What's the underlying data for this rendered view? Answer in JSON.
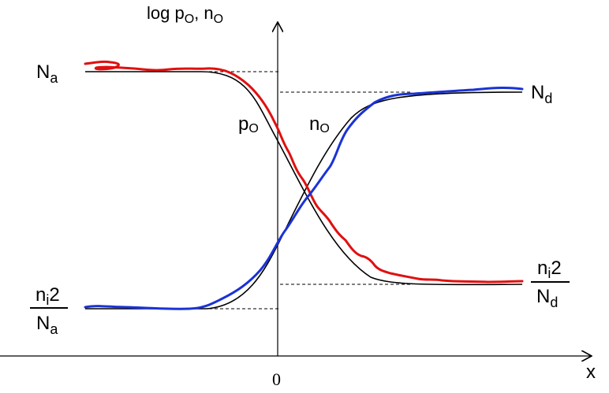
{
  "figure": {
    "y_axis_label": "log p",
    "y_axis_label_sub1": "O",
    "y_axis_label_mid": ", n",
    "y_axis_label_sub2": "O",
    "x_axis_label": "x",
    "origin_label": "0",
    "level_Na": {
      "main": "N",
      "sub": "a"
    },
    "level_Nd": {
      "main": "N",
      "sub": "d"
    },
    "curve_p_label": {
      "main": "p",
      "sub": "O"
    },
    "curve_n_label": {
      "main": "n",
      "sub": "O"
    },
    "left_fraction": {
      "num_main": "n",
      "num_sub": "i",
      "num_sup": "2",
      "den_main": "N",
      "den_sub": "a"
    },
    "right_fraction": {
      "num_main": "n",
      "num_sub": "i",
      "num_sup": "2",
      "den_main": "N",
      "den_sub": "d"
    }
  },
  "colors": {
    "axes": "#000000",
    "ideal_curves": "#000000",
    "p_curve": "#e01010",
    "n_curve": "#1a33d6",
    "guides": "#000000"
  }
}
